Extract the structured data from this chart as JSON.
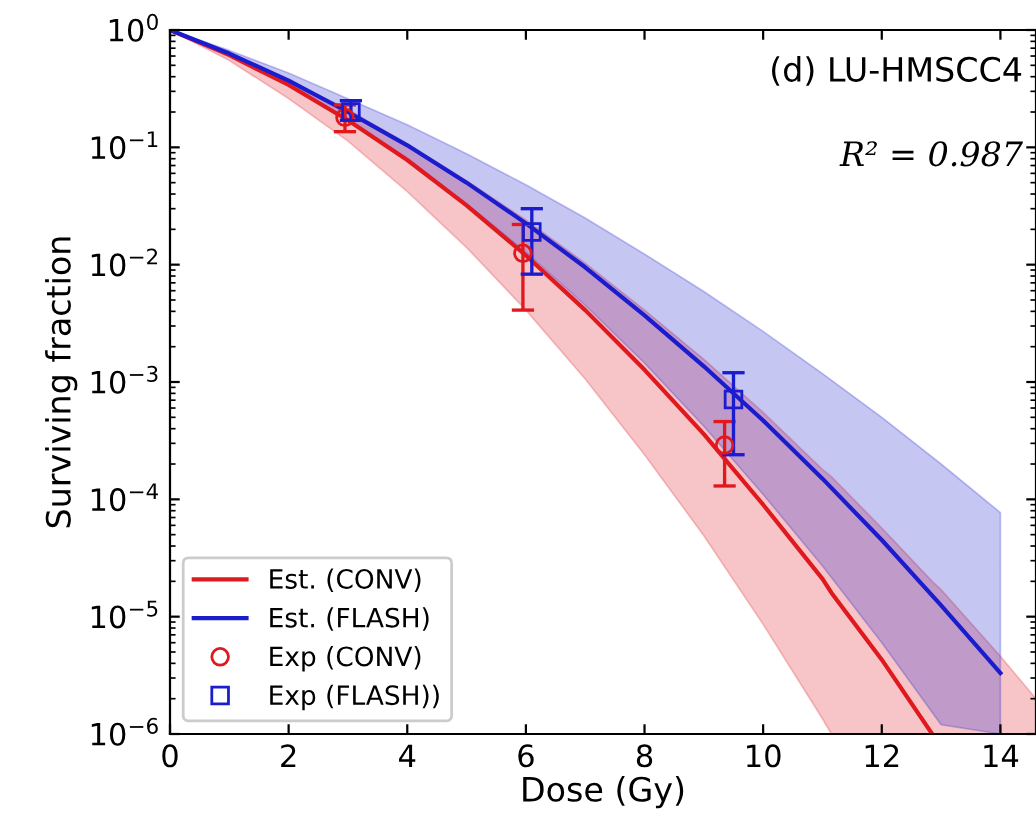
{
  "chart_data": {
    "type": "line",
    "xlabel": "Dose (Gy)",
    "ylabel": "Surviving fraction",
    "log": "y",
    "grid": false,
    "legend": "bottom left",
    "xlim": [
      0,
      14.6
    ],
    "xticks": [
      0,
      2,
      4,
      6,
      8,
      10,
      12,
      14
    ],
    "ylim": [
      1e-06,
      1
    ],
    "yticks": [
      {
        "value": 1e-06,
        "label": "10$^{−6}$"
      },
      {
        "value": 1e-05,
        "label": "10$^{−5}$"
      },
      {
        "value": 0.0001,
        "label": "10$^{−4}$"
      },
      {
        "value": 0.001,
        "label": "10$^{−3}$"
      },
      {
        "value": 0.01,
        "label": "10$^{−2}$"
      },
      {
        "value": 0.1,
        "label": "10$^{−1}$"
      },
      {
        "value": 1,
        "label": "10$^{0}$"
      }
    ],
    "annotations": [
      "(d) LU-HMSCC4",
      "R² = 0.987"
    ],
    "series": [
      {
        "name": "Est. (CONV)",
        "color": "#e0191e",
        "x": [
          0,
          1,
          2,
          3,
          4,
          5,
          6,
          7,
          8,
          9,
          10,
          11,
          11.15,
          12,
          12.85,
          13,
          14,
          14.6
        ],
        "values": [
          1,
          0.61,
          0.34,
          0.17,
          0.078,
          0.032,
          0.012,
          0.0041,
          0.00127,
          0.00036,
          9e-05,
          2.1e-05,
          1.6e-05,
          4.3e-06,
          1e-06,
          null,
          null,
          null
        ],
        "lower": [
          1,
          0.55,
          0.26,
          0.113,
          0.042,
          0.014,
          0.0041,
          0.00106,
          0.00024,
          4.9e-05,
          8.6e-06,
          1.35e-06,
          1e-06,
          1e-06,
          1e-06,
          1e-06,
          1e-06,
          1e-06
        ],
        "upper": [
          1,
          0.63,
          0.37,
          0.21,
          0.107,
          0.052,
          0.024,
          0.0103,
          0.0041,
          0.00156,
          0.00055,
          0.00018,
          0.000156,
          5.7e-05,
          2e-05,
          1.7e-05,
          4.6e-06,
          2e-06
        ]
      },
      {
        "name": "Est. (FLASH)",
        "color": "#1c1ccf",
        "x": [
          0,
          1,
          2,
          3,
          4,
          5,
          6,
          7,
          8,
          9,
          10,
          11,
          12,
          13,
          14
        ],
        "values": [
          1,
          0.63,
          0.37,
          0.2,
          0.104,
          0.05,
          0.0225,
          0.0095,
          0.0037,
          0.00136,
          0.00047,
          0.00015,
          4.5e-05,
          1.25e-05,
          3.3e-06
        ],
        "lower": [
          1,
          0.61,
          0.34,
          0.17,
          0.079,
          0.033,
          0.0128,
          0.0045,
          0.00145,
          0.00042,
          0.00011,
          2.7e-05,
          6e-06,
          1.2e-06,
          1e-06
        ],
        "upper": [
          1,
          0.67,
          0.43,
          0.26,
          0.156,
          0.088,
          0.048,
          0.025,
          0.0123,
          0.0059,
          0.0027,
          0.00118,
          0.0005,
          0.0002,
          7.7e-05
        ]
      },
      {
        "name": "Exp (CONV)",
        "type": "scatter",
        "marker": "circle",
        "color": "#e0191e",
        "x": [
          2.95,
          5.95,
          9.35
        ],
        "values": [
          0.18,
          0.0125,
          0.00029
        ],
        "errors": [
          [
            0.136,
            0.23
          ],
          [
            0.0041,
            0.022
          ],
          [
            0.00013,
            0.00046
          ]
        ]
      },
      {
        "name": "Exp (FLASH))",
        "type": "scatter",
        "marker": "square",
        "color": "#1c1ccf",
        "x": [
          3.05,
          6.1,
          9.5
        ],
        "values": [
          0.2,
          0.019,
          0.00071
        ],
        "errors": [
          [
            0.17,
            0.25
          ],
          [
            0.0083,
            0.03
          ],
          [
            0.00024,
            0.0012
          ]
        ]
      }
    ]
  }
}
